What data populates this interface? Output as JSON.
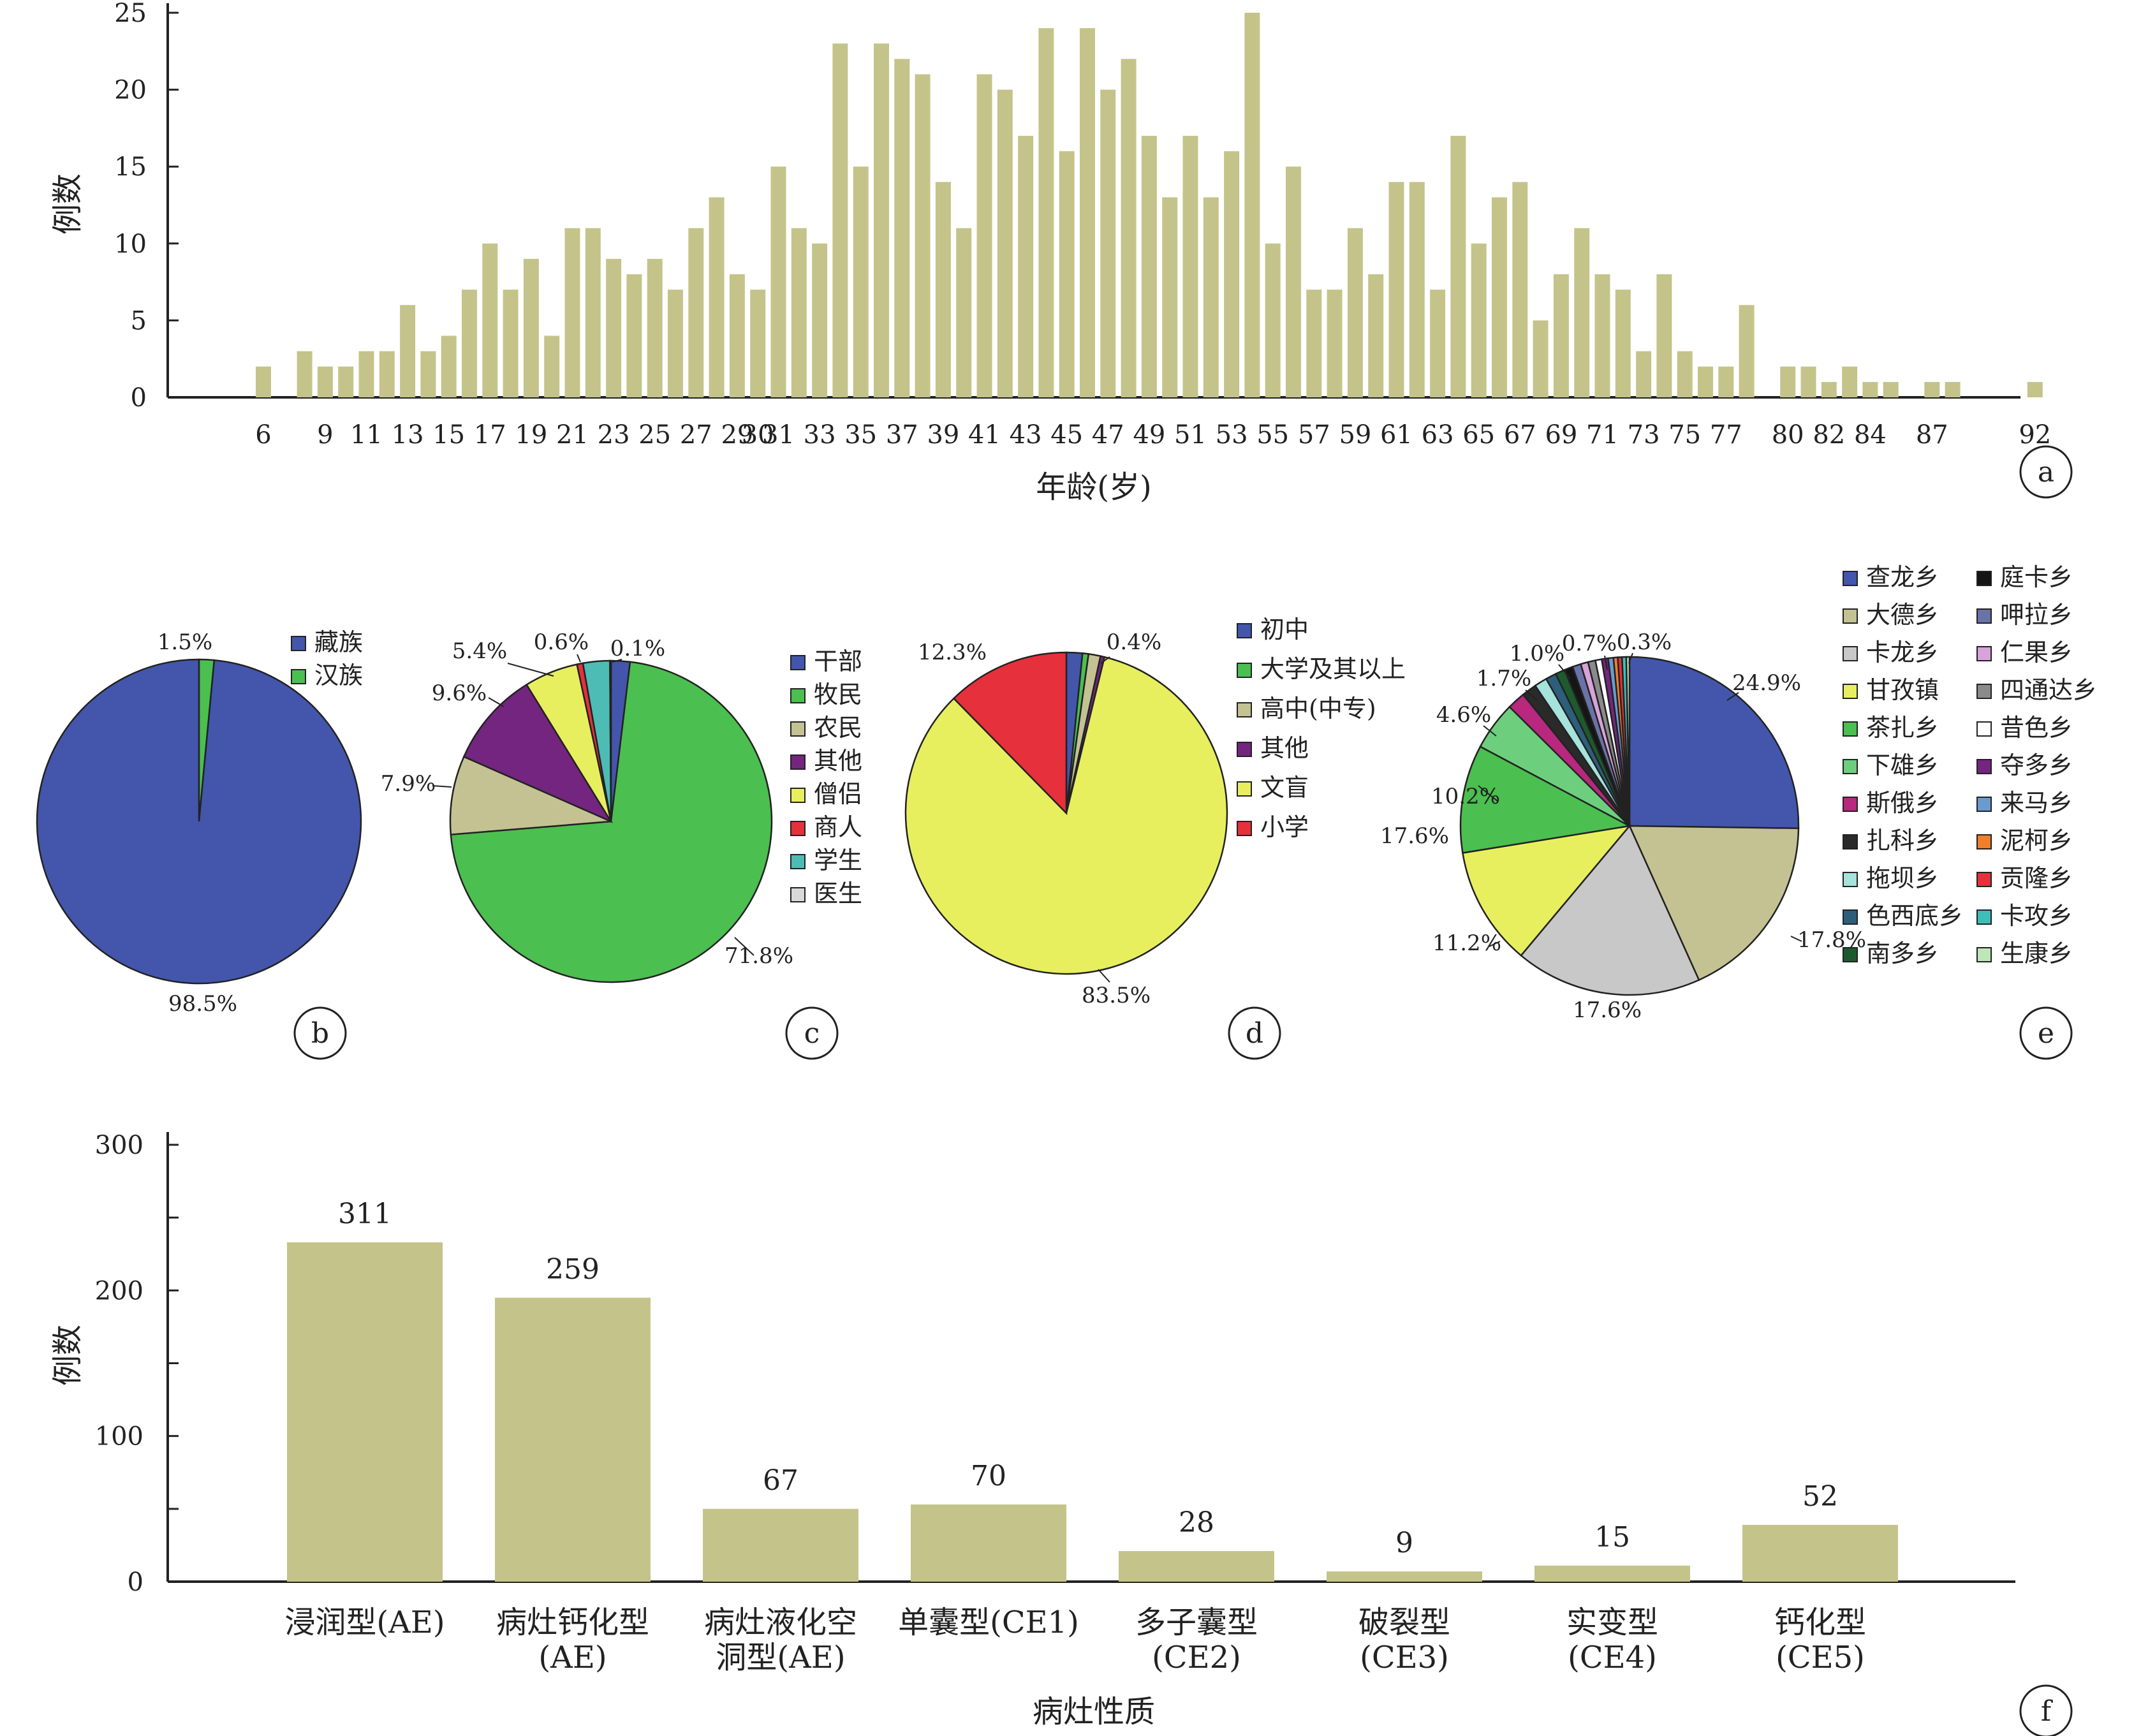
{
  "chart_data": [
    {
      "panel": "a",
      "type": "bar",
      "xlabel": "年龄(岁)",
      "ylabel": "例数",
      "ylim": [
        0,
        25
      ],
      "yticks": [
        0,
        5,
        10,
        15,
        20,
        25
      ],
      "x": [
        6,
        8,
        9,
        10,
        11,
        12,
        13,
        14,
        15,
        16,
        17,
        18,
        19,
        20,
        21,
        22,
        23,
        24,
        25,
        26,
        27,
        28,
        29,
        30,
        31,
        32,
        33,
        34,
        35,
        36,
        37,
        38,
        39,
        40,
        41,
        42,
        43,
        44,
        45,
        46,
        47,
        48,
        49,
        50,
        51,
        52,
        53,
        54,
        55,
        56,
        57,
        58,
        59,
        60,
        61,
        62,
        63,
        64,
        65,
        66,
        67,
        68,
        69,
        70,
        71,
        72,
        73,
        74,
        75,
        76,
        77,
        78,
        80,
        81,
        82,
        83,
        84,
        85,
        87,
        88,
        92
      ],
      "x_tick_labels": [
        "6",
        "9",
        "11",
        "13",
        "15",
        "17",
        "19",
        "21",
        "23",
        "25",
        "27",
        "29",
        "30",
        "31",
        "33",
        "35",
        "37",
        "39",
        "41",
        "43",
        "45",
        "47",
        "49",
        "51",
        "53",
        "55",
        "57",
        "59",
        "61",
        "63",
        "65",
        "67",
        "69",
        "71",
        "73",
        "75",
        "77",
        "80",
        "82",
        "84",
        "87",
        "92"
      ],
      "values": [
        2,
        3,
        2,
        2,
        3,
        3,
        6,
        3,
        4,
        7,
        10,
        7,
        9,
        4,
        11,
        11,
        9,
        8,
        9,
        7,
        11,
        13,
        8,
        7,
        15,
        11,
        10,
        23,
        15,
        23,
        22,
        21,
        14,
        11,
        21,
        20,
        17,
        24,
        16,
        24,
        20,
        22,
        17,
        13,
        17,
        13,
        16,
        25,
        10,
        15,
        7,
        7,
        11,
        8,
        14,
        14,
        7,
        17,
        10,
        13,
        14,
        5,
        8,
        11,
        8,
        7,
        3,
        8,
        3,
        2,
        2,
        6,
        2,
        2,
        1,
        2,
        1,
        1,
        1,
        1,
        1
      ],
      "color": "#c4c48a"
    },
    {
      "panel": "b",
      "type": "pie",
      "labels": [
        "藏族",
        "汉族"
      ],
      "values": [
        98.5,
        1.5
      ],
      "pct_labels": [
        "98.5%",
        "1.5%"
      ],
      "colors": [
        "#4356ab",
        "#4bbf4f"
      ]
    },
    {
      "panel": "c",
      "type": "pie",
      "labels": [
        "干部",
        "牧民",
        "农民",
        "其他",
        "僧侣",
        "商人",
        "学生",
        "医生"
      ],
      "values": [
        1.9,
        71.8,
        7.9,
        9.6,
        5.4,
        0.6,
        2.7,
        0.1
      ],
      "pct_labels": [
        "",
        "71.8%",
        "7.9%",
        "9.6%",
        "5.4%",
        "0.6%",
        "",
        "0.1%"
      ],
      "colors": [
        "#4356ab",
        "#4bbf4f",
        "#c4c293",
        "#74257f",
        "#e8ef5f",
        "#e6303c",
        "#4dbcb5",
        "#d9d9d9"
      ]
    },
    {
      "panel": "d",
      "type": "pie",
      "labels": [
        "初中",
        "大学及其以上",
        "高中(中专)",
        "其他",
        "文盲",
        "小学"
      ],
      "values": [
        1.6,
        0.6,
        1.2,
        0.4,
        83.5,
        12.3
      ],
      "pct_labels": [
        "",
        "",
        "",
        "0.4%",
        "83.5%",
        "12.3%"
      ],
      "colors": [
        "#4356ab",
        "#4bbf4f",
        "#c4c293",
        "#74257f",
        "#e8ef5f",
        "#e6303c"
      ]
    },
    {
      "panel": "e",
      "type": "pie",
      "labels": [
        "查龙乡",
        "庭卡乡",
        "大德乡",
        "呷拉乡",
        "卡龙乡",
        "仁果乡",
        "甘孜镇",
        "四通达乡",
        "茶扎乡",
        "昔色乡",
        "下雄乡",
        "夺多乡",
        "斯俄乡",
        "来马乡",
        "扎科乡",
        "泥柯乡",
        "拖坝乡",
        "贡隆乡",
        "色西底乡",
        "卡攻乡",
        "南多乡",
        "生康乡"
      ],
      "legend_order": [
        "查龙乡",
        "大德乡",
        "卡龙乡",
        "甘孜镇",
        "茶扎乡",
        "下雄乡",
        "斯俄乡",
        "扎科乡",
        "拖坝乡",
        "色西底乡",
        "南多乡",
        "庭卡乡",
        "呷拉乡",
        "仁果乡",
        "四通达乡",
        "昔色乡",
        "夺多乡",
        "来马乡",
        "泥柯乡",
        "贡隆乡",
        "卡攻乡",
        "生康乡"
      ],
      "slices": [
        {
          "label": "查龙乡",
          "value": 24.9,
          "pct": "24.9%",
          "color": "#4356ab"
        },
        {
          "label": "大德乡",
          "value": 17.8,
          "pct": "17.8%",
          "color": "#c4c293"
        },
        {
          "label": "卡龙乡",
          "value": 17.6,
          "pct": "17.6%",
          "color": "#c8c8c8"
        },
        {
          "label": "甘孜镇",
          "value": 11.2,
          "pct": "11.2%",
          "color": "#e8ef5f"
        },
        {
          "label": "茶扎乡",
          "value": 10.2,
          "pct": "10.2%",
          "color": "#4bbf4f"
        },
        {
          "label": "下雄乡",
          "value": 4.6,
          "pct": "4.6%",
          "color": "#6dcf7d"
        },
        {
          "label": "斯俄乡",
          "value": 1.7,
          "pct": "1.7%",
          "color": "#b8287e"
        },
        {
          "label": "扎科乡",
          "value": 1.4,
          "pct": "",
          "color": "#2a2a2a"
        },
        {
          "label": "拖坝乡",
          "value": 1.2,
          "pct": "",
          "color": "#a5e3dc"
        },
        {
          "label": "色西底乡",
          "value": 1.0,
          "pct": "1.0%",
          "color": "#2d5e7a"
        },
        {
          "label": "南多乡",
          "value": 0.9,
          "pct": "",
          "color": "#1d5a2e"
        },
        {
          "label": "庭卡乡",
          "value": 0.8,
          "pct": "",
          "color": "#151515"
        },
        {
          "label": "呷拉乡",
          "value": 0.8,
          "pct": "",
          "color": "#6a73a8"
        },
        {
          "label": "仁果乡",
          "value": 0.7,
          "pct": "0.7%",
          "color": "#d7a3d9"
        },
        {
          "label": "四通达乡",
          "value": 0.7,
          "pct": "",
          "color": "#8a8a8a"
        },
        {
          "label": "昔色乡",
          "value": 0.6,
          "pct": "",
          "color": "#ffffff"
        },
        {
          "label": "夺多乡",
          "value": 0.6,
          "pct": "",
          "color": "#74257f"
        },
        {
          "label": "来马乡",
          "value": 0.5,
          "pct": "",
          "color": "#6a9bd0"
        },
        {
          "label": "泥柯乡",
          "value": 0.4,
          "pct": "",
          "color": "#ef7f2a"
        },
        {
          "label": "贡隆乡",
          "value": 0.4,
          "pct": "",
          "color": "#e6303c"
        },
        {
          "label": "卡攻乡",
          "value": 0.4,
          "pct": "",
          "color": "#3dbfb8"
        },
        {
          "label": "生康乡",
          "value": 0.3,
          "pct": "0.3%",
          "color": "#bfe6b8"
        }
      ]
    },
    {
      "panel": "f",
      "type": "bar",
      "xlabel": "病灶性质",
      "ylabel": "例数",
      "ylim": [
        0,
        300
      ],
      "yticks": [
        0,
        100,
        200,
        300
      ],
      "categories": [
        [
          "浸润型(AE)"
        ],
        [
          "病灶钙化型",
          "(AE)"
        ],
        [
          "病灶液化空",
          "洞型(AE)"
        ],
        [
          "单囊型(CE1)"
        ],
        [
          "多子囊型",
          "(CE2)"
        ],
        [
          "破裂型",
          "(CE3)"
        ],
        [
          "实变型",
          "(CE4)"
        ],
        [
          "钙化型",
          "(CE5)"
        ]
      ],
      "values": [
        311,
        259,
        67,
        70,
        28,
        9,
        15,
        52
      ],
      "bar_heights": [
        233,
        195,
        50,
        53,
        21,
        7,
        11,
        39
      ],
      "color": "#c4c48a"
    }
  ],
  "panel_letters": [
    "a",
    "b",
    "c",
    "d",
    "e",
    "f"
  ]
}
